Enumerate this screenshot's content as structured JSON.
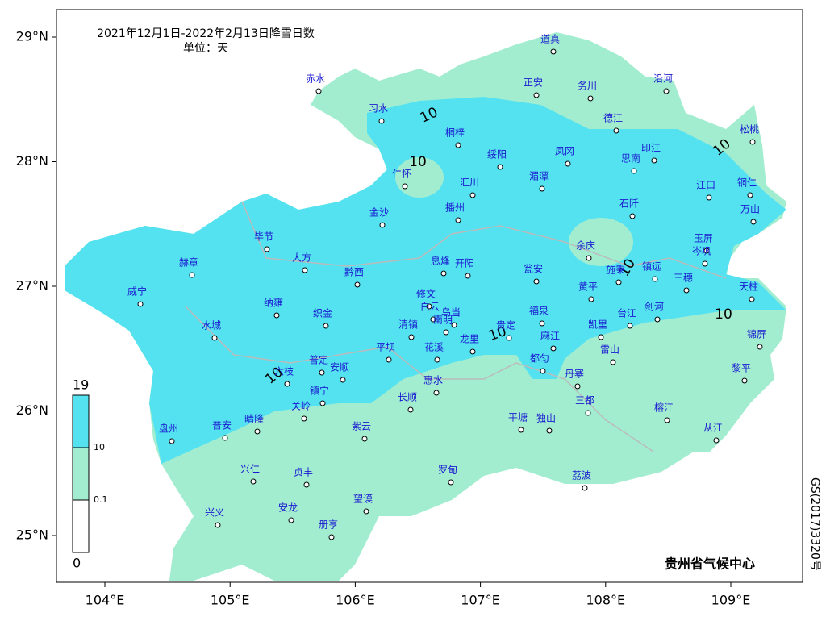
{
  "title": "2021年12月1日-2022年2月13日降雪日数",
  "unit": "单位：天",
  "x_axis": [
    {
      "value": 104,
      "label": "104°E"
    },
    {
      "value": 105,
      "label": "105°E"
    },
    {
      "value": 106,
      "label": "106°E"
    },
    {
      "value": 107,
      "label": "107°E"
    },
    {
      "value": 108,
      "label": "108°E"
    },
    {
      "value": 109,
      "label": "109°E"
    }
  ],
  "y_axis": [
    {
      "value": 25,
      "label": "25°N"
    },
    {
      "value": 26,
      "label": "26°N"
    },
    {
      "value": 27,
      "label": "27°N"
    },
    {
      "value": 28,
      "label": "28°N"
    },
    {
      "value": 29,
      "label": "29°N"
    }
  ],
  "legend": [
    {
      "value": 19,
      "label": "19",
      "color": "#55e2f0"
    },
    {
      "value": 10,
      "label": "10",
      "color": "#a2edd0"
    },
    {
      "value": 0.1,
      "label": "0.1",
      "color": "#ffffff"
    },
    {
      "value": 0,
      "label": "0"
    }
  ],
  "contour_labels": [
    "10",
    "10",
    "10",
    "10",
    "10",
    "10",
    "10"
  ],
  "stations": [
    "道真",
    "赤水",
    "正安",
    "务川",
    "沿河",
    "习水",
    "桐梓",
    "德江",
    "松桃",
    "绥阳",
    "凤冈",
    "印江",
    "思南",
    "仁怀",
    "汇川",
    "湄潭",
    "江口",
    "铜仁",
    "播州",
    "金沙",
    "石阡",
    "万山",
    "毕节",
    "余庆",
    "玉屏",
    "岑巩",
    "大方",
    "息烽",
    "开阳",
    "瓮安",
    "施秉",
    "镇远",
    "三穗",
    "赫章",
    "黔西",
    "修文",
    "黄平",
    "天柱",
    "威宁",
    "纳雍",
    "白云",
    "乌当",
    "织金",
    "福泉",
    "台江",
    "剑河",
    "清镇",
    "南明",
    "水城",
    "贵定",
    "龙里",
    "凯里",
    "花溪",
    "锦屏",
    "麻江",
    "平坝",
    "雷山",
    "都匀",
    "普定",
    "安顺",
    "六枝",
    "黎平",
    "丹寨",
    "惠水",
    "镇宁",
    "长顺",
    "三都",
    "关岭",
    "榕江",
    "盘州",
    "普安",
    "晴隆",
    "紫云",
    "平塘",
    "独山",
    "从江",
    "兴仁",
    "贞丰",
    "罗甸",
    "荔波",
    "望谟",
    "兴义",
    "安龙",
    "册亨"
  ],
  "credit": "贵州省气候中心",
  "map_number": "GS(2017)3320号"
}
